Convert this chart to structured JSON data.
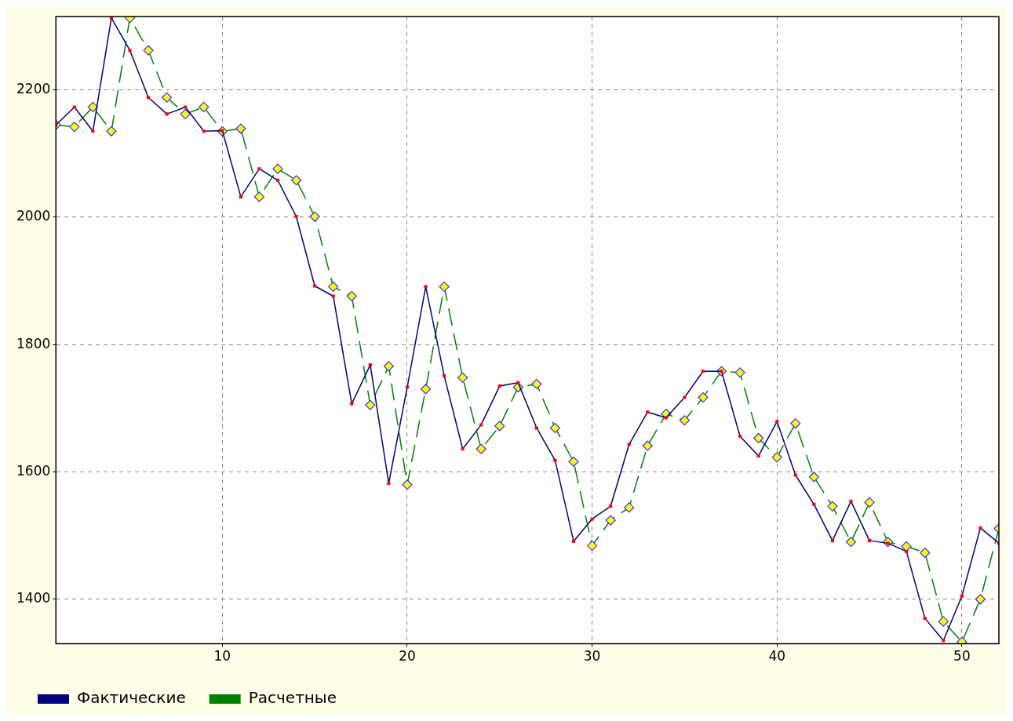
{
  "chart_data": {
    "type": "line",
    "x": [
      1,
      2,
      3,
      4,
      5,
      6,
      7,
      8,
      9,
      10,
      11,
      12,
      13,
      14,
      15,
      16,
      17,
      18,
      19,
      20,
      21,
      22,
      23,
      24,
      25,
      26,
      27,
      28,
      29,
      30,
      31,
      32,
      33,
      34,
      35,
      36,
      37,
      38,
      39,
      40,
      41,
      42,
      43,
      44,
      45,
      46,
      47,
      48,
      49,
      50,
      51,
      52
    ],
    "series": [
      {
        "name": "Фактические",
        "color": "#000080",
        "marker": "square",
        "line_style": "solid",
        "values": [
          2145,
          2173,
          2135,
          2313,
          2262,
          2188,
          2162,
          2173,
          2135,
          2136,
          2032,
          2076,
          2058,
          2001,
          1892,
          1876,
          1707,
          1768,
          1582,
          1733,
          1891,
          1751,
          1636,
          1674,
          1735,
          1740,
          1669,
          1618,
          1491,
          1526,
          1546,
          1643,
          1694,
          1685,
          1717,
          1758,
          1758,
          1656,
          1625,
          1679,
          1595,
          1549,
          1492,
          1554,
          1492,
          1488,
          1475,
          1370,
          1335,
          1405,
          1512,
          1488
        ]
      },
      {
        "name": "Расчетные",
        "color": "#008000",
        "marker": "diamond",
        "line_style": "dashed",
        "values": [
          2145,
          2142,
          2173,
          2135,
          2313,
          2262,
          2188,
          2162,
          2173,
          2135,
          2139,
          2032,
          2076,
          2058,
          2001,
          1891,
          1876,
          1705,
          1766,
          1580,
          1730,
          1891,
          1748,
          1636,
          1672,
          1733,
          1738,
          1669,
          1616,
          1484,
          1524,
          1544,
          1641,
          1691,
          1681,
          1717,
          1758,
          1756,
          1653,
          1623,
          1676,
          1592,
          1546,
          1490,
          1552,
          1490,
          1483,
          1473,
          1365,
          1333,
          1400,
          1511
        ]
      }
    ],
    "xlim": [
      1,
      52
    ],
    "xticks": [
      10,
      20,
      30,
      40,
      50
    ],
    "ylim": [
      1330,
      2315
    ],
    "yticks": [
      1400,
      1600,
      1800,
      2000,
      2200
    ],
    "grid": true,
    "legend": "bottom left"
  }
}
